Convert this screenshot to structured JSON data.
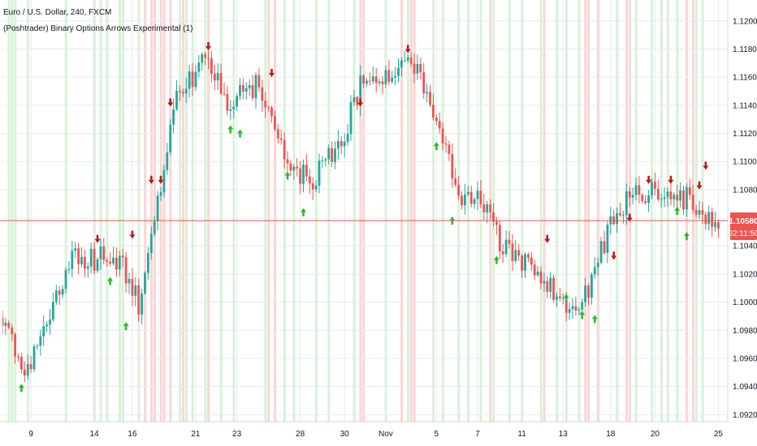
{
  "legend": {
    "instrument": "Euro / U.S. Dollar, 240, FXCM",
    "indicator": "(Poshtrader) Binary Options Arrows Experimental (1)"
  },
  "price_badge": {
    "price": "1.10580",
    "countdown": "02:11:50"
  },
  "colors": {
    "up": "#26a69a",
    "down": "#ef5350",
    "up_arrow": "#2db82d",
    "down_arrow": "#b71c1c",
    "green_band": "#d7f2d7",
    "red_band": "#fbd5d5",
    "price_line": "#ef5350",
    "grid": "#e7e9ef"
  },
  "chart_data": {
    "type": "candlestick",
    "title": "",
    "timeframe": "240",
    "ylim": [
      1.0915,
      1.1212
    ],
    "y_ticks": [
      "1.09200",
      "1.09400",
      "1.09600",
      "1.09800",
      "1.10000",
      "1.10200",
      "1.10400",
      "1.10600",
      "1.10800",
      "1.11000",
      "1.11200",
      "1.11400",
      "1.11600",
      "1.11800",
      "1.12000"
    ],
    "x_ticks": [
      "9",
      "14",
      "16",
      "21",
      "23",
      "28",
      "30",
      "Nov",
      "5",
      "7",
      "11",
      "13",
      "18",
      "20",
      "25"
    ],
    "current_price": 1.1058,
    "path": [
      {
        "i": 0,
        "p": 1.099
      },
      {
        "i": 7,
        "p": 1.0952
      },
      {
        "i": 12,
        "p": 1.0975
      },
      {
        "i": 22,
        "p": 1.1035
      },
      {
        "i": 27,
        "p": 1.103
      },
      {
        "i": 37,
        "p": 1.1032
      },
      {
        "i": 43,
        "p": 1.1
      },
      {
        "i": 47,
        "p": 1.1043
      },
      {
        "i": 55,
        "p": 1.1145
      },
      {
        "i": 64,
        "p": 1.1175
      },
      {
        "i": 72,
        "p": 1.114
      },
      {
        "i": 80,
        "p": 1.1155
      },
      {
        "i": 90,
        "p": 1.11
      },
      {
        "i": 97,
        "p": 1.1085
      },
      {
        "i": 107,
        "p": 1.1115
      },
      {
        "i": 115,
        "p": 1.1165
      },
      {
        "i": 123,
        "p": 1.1155
      },
      {
        "i": 128,
        "p": 1.1175
      },
      {
        "i": 138,
        "p": 1.113
      },
      {
        "i": 144,
        "p": 1.1075
      },
      {
        "i": 152,
        "p": 1.1072
      },
      {
        "i": 158,
        "p": 1.1038
      },
      {
        "i": 167,
        "p": 1.1028
      },
      {
        "i": 175,
        "p": 1.1005
      },
      {
        "i": 183,
        "p": 1.0995
      },
      {
        "i": 188,
        "p": 1.1035
      },
      {
        "i": 197,
        "p": 1.1075
      },
      {
        "i": 205,
        "p": 1.108
      },
      {
        "i": 212,
        "p": 1.107
      },
      {
        "i": 217,
        "p": 1.1078
      },
      {
        "i": 222,
        "p": 1.106
      },
      {
        "i": 226,
        "p": 1.1058
      }
    ],
    "markers": [
      {
        "type": "up",
        "i": 6,
        "price": 1.0939
      },
      {
        "type": "down",
        "i": 30,
        "price": 1.1045
      },
      {
        "type": "up",
        "i": 34,
        "price": 1.1015
      },
      {
        "type": "up",
        "i": 39,
        "price": 1.0983
      },
      {
        "type": "down",
        "i": 41,
        "price": 1.1048
      },
      {
        "type": "down",
        "i": 47,
        "price": 1.1087
      },
      {
        "type": "down",
        "i": 50,
        "price": 1.1087
      },
      {
        "type": "down",
        "i": 53,
        "price": 1.1142
      },
      {
        "type": "down",
        "i": 65,
        "price": 1.1182
      },
      {
        "type": "up",
        "i": 72,
        "price": 1.1123
      },
      {
        "type": "up",
        "i": 75,
        "price": 1.112
      },
      {
        "type": "down",
        "i": 85,
        "price": 1.1163
      },
      {
        "type": "up",
        "i": 90,
        "price": 1.109
      },
      {
        "type": "up",
        "i": 95,
        "price": 1.1064
      },
      {
        "type": "down",
        "i": 113,
        "price": 1.1142
      },
      {
        "type": "down",
        "i": 128,
        "price": 1.118
      },
      {
        "type": "up",
        "i": 137,
        "price": 1.1111
      },
      {
        "type": "up",
        "i": 142,
        "price": 1.1058
      },
      {
        "type": "up",
        "i": 156,
        "price": 1.103
      },
      {
        "type": "down",
        "i": 172,
        "price": 1.1045
      },
      {
        "type": "up",
        "i": 178,
        "price": 1.1003
      },
      {
        "type": "up",
        "i": 183,
        "price": 1.0991
      },
      {
        "type": "up",
        "i": 187,
        "price": 1.0988
      },
      {
        "type": "down",
        "i": 193,
        "price": 1.1033
      },
      {
        "type": "down",
        "i": 198,
        "price": 1.106
      },
      {
        "type": "down",
        "i": 204,
        "price": 1.1087
      },
      {
        "type": "down",
        "i": 211,
        "price": 1.1087
      },
      {
        "type": "up",
        "i": 213,
        "price": 1.1065
      },
      {
        "type": "up",
        "i": 216,
        "price": 1.1047
      },
      {
        "type": "down",
        "i": 220,
        "price": 1.1083
      },
      {
        "type": "down",
        "i": 222,
        "price": 1.1097
      }
    ],
    "band_bars": [
      {
        "type": "green",
        "i": [
          2,
          3,
          4,
          8,
          20,
          29,
          31,
          33,
          37,
          38,
          43,
          51,
          56,
          58,
          60,
          64,
          69,
          73,
          83,
          86,
          89,
          92,
          99,
          103,
          111,
          121,
          128,
          136,
          139,
          144,
          147,
          151,
          155,
          160,
          164,
          170,
          175,
          178,
          182,
          188,
          194,
          200,
          205,
          208,
          210,
          213,
          219,
          221
        ]
      },
      {
        "type": "red",
        "i": [
          45,
          47,
          48,
          50,
          51,
          53,
          57,
          65,
          84,
          86,
          113,
          114,
          126,
          129,
          130,
          154,
          171,
          184,
          185,
          188,
          197,
          198,
          216,
          218
        ]
      }
    ]
  }
}
